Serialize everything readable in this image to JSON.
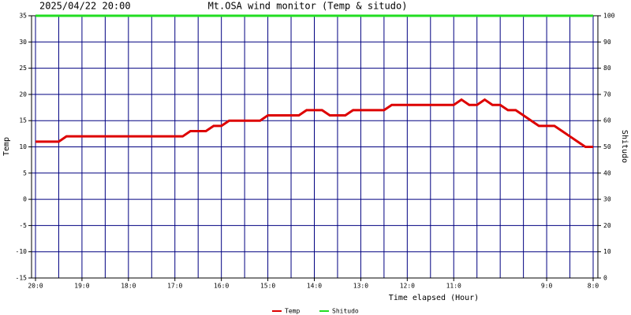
{
  "chart_data": {
    "type": "line",
    "title": "Mt.OSA wind monitor (Temp & situdo)",
    "subtitle": "2025/04/22 20:00",
    "x_label": "Time elapsed (Hour)",
    "y_label": "Temp",
    "y2_label": "Shitudo",
    "x": [
      0,
      10,
      20,
      30,
      40,
      50,
      60,
      70,
      80,
      90,
      100,
      110,
      120,
      130,
      140,
      150,
      160,
      170,
      180,
      190,
      200,
      210,
      220,
      230,
      240,
      250,
      260,
      270,
      280,
      290,
      300,
      310,
      320,
      330,
      340,
      350,
      360,
      370,
      380,
      390,
      400,
      410,
      420,
      430,
      440,
      450,
      460,
      470,
      480,
      490,
      500,
      510,
      520,
      530,
      540,
      550,
      560,
      570,
      580,
      590,
      600,
      610,
      620,
      630,
      640,
      650,
      660,
      670,
      680,
      690,
      700,
      710,
      720
    ],
    "series": [
      {
        "name": "Temp",
        "color": "#dd0000",
        "values": [
          11,
          11,
          11,
          11,
          12,
          12,
          12,
          12,
          12,
          12,
          12,
          12,
          12,
          12,
          12,
          12,
          12,
          12,
          12,
          12,
          13,
          13,
          13,
          14,
          14,
          15,
          15,
          15,
          15,
          15,
          16,
          16,
          16,
          16,
          16,
          17,
          17,
          17,
          16,
          16,
          16,
          17,
          17,
          17,
          17,
          17,
          18,
          18,
          18,
          18,
          18,
          18,
          18,
          18,
          18,
          19,
          18,
          18,
          19,
          18,
          18,
          17,
          17,
          16,
          15,
          14,
          14,
          14,
          13,
          12,
          11,
          10,
          10
        ]
      },
      {
        "name": "Shitudo",
        "color": "#22dd22",
        "axis": "y2",
        "values": [
          100,
          100,
          100,
          100,
          100,
          100,
          100,
          100,
          100,
          100,
          100,
          100,
          100,
          100,
          100,
          100,
          100,
          100,
          100,
          100,
          100,
          100,
          100,
          100,
          100,
          100,
          100,
          100,
          100,
          100,
          100,
          100,
          100,
          100,
          100,
          100,
          100,
          100,
          100,
          100,
          100,
          100,
          100,
          100,
          100,
          100,
          100,
          100,
          100,
          100,
          100,
          100,
          100,
          100,
          100,
          100,
          100,
          100,
          100,
          100,
          100,
          100,
          100,
          100,
          100,
          100,
          100,
          100,
          100,
          100,
          100,
          100,
          100
        ]
      }
    ],
    "xlim": [
      0,
      720
    ],
    "xticks": [
      {
        "value": 0,
        "label": "20:0"
      },
      {
        "value": 60,
        "label": "19:0"
      },
      {
        "value": 120,
        "label": "18:0"
      },
      {
        "value": 180,
        "label": "17:0"
      },
      {
        "value": 240,
        "label": "16:0"
      },
      {
        "value": 300,
        "label": "15:0"
      },
      {
        "value": 360,
        "label": "14:0"
      },
      {
        "value": 420,
        "label": "13:0"
      },
      {
        "value": 480,
        "label": "12:0"
      },
      {
        "value": 540,
        "label": "11:0"
      },
      {
        "value": 660,
        "label": "9:0"
      },
      {
        "value": 720,
        "label": "8:0"
      }
    ],
    "xgrid": [
      0,
      30,
      60,
      90,
      120,
      150,
      180,
      210,
      240,
      270,
      300,
      330,
      360,
      390,
      420,
      450,
      480,
      510,
      540,
      570,
      600,
      630,
      660,
      690,
      720
    ],
    "ylim": [
      -15,
      35
    ],
    "yticks": [
      -15,
      -10,
      -5,
      0,
      5,
      10,
      15,
      20,
      25,
      30,
      35
    ],
    "y2lim": [
      0,
      100
    ],
    "y2ticks": [
      0,
      10,
      20,
      30,
      40,
      50,
      60,
      70,
      80,
      90,
      100
    ],
    "grid": true,
    "grid_color": "#000080",
    "legend": "bottom"
  }
}
